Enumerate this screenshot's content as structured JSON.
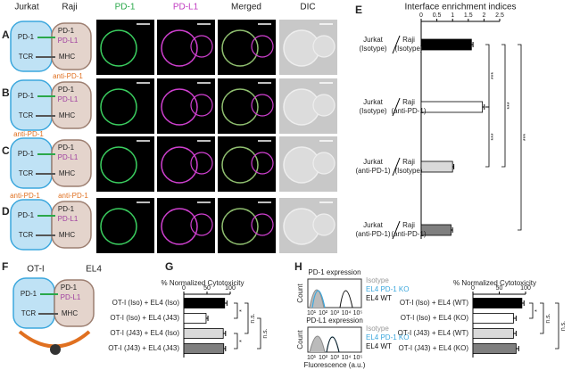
{
  "panels": [
    "A",
    "B",
    "C",
    "D",
    "E",
    "F",
    "G",
    "H"
  ],
  "columns": [
    "PD-1",
    "PD-L1",
    "Merged",
    "DIC"
  ],
  "cells": [
    "Jurkat",
    "Raji"
  ],
  "cartoon": {
    "left": [
      "PD-1",
      "TCR"
    ],
    "right": [
      "PD-1",
      "PD-L1",
      "MHC"
    ],
    "antibody": "anti-PD-1"
  },
  "f_cells": [
    "OT-I",
    "EL4"
  ],
  "histograms": {
    "titles": [
      "PD-1 expression",
      "PD-L1 expression"
    ],
    "y_label": "Count",
    "x_label": "Fluorescence (a.u.)",
    "xticks": [
      "10¹",
      "10²",
      "10³",
      "10⁴",
      "10⁵"
    ],
    "legend": [
      "Isotype",
      "EL4 PD-1 KO",
      "EL4 WT"
    ]
  },
  "chart_data": [
    {
      "type": "bar",
      "orientation": "horizontal",
      "title": "Interface enrichment indices",
      "categories": [
        {
          "left": [
            "Jurkat",
            "(Isotype)"
          ],
          "right": [
            "Raji",
            "(Isotype)"
          ]
        },
        {
          "left": [
            "Jurkat",
            "(Isotype)"
          ],
          "right": [
            "Raji",
            "(anti-PD-1)"
          ]
        },
        {
          "left": [
            "Jurkat",
            "(anti-PD-1)"
          ],
          "right": [
            "Raji",
            "(Isotype)"
          ]
        },
        {
          "left": [
            "Jurkat",
            "(anti-PD-1)"
          ],
          "right": [
            "Raji",
            "(anti-PD-1)"
          ]
        }
      ],
      "values": [
        1.6,
        1.95,
        1.0,
        0.95
      ],
      "errors": [
        0.05,
        0.06,
        0.04,
        0.05
      ],
      "colors": [
        "#000000",
        "#ffffff",
        "#d9d9d9",
        "#7f7f7f"
      ],
      "xlim": [
        0,
        2.5
      ],
      "xticks": [
        0,
        0.5,
        1,
        1.5,
        2,
        2.5
      ],
      "significance": [
        "***",
        "***",
        "***",
        "***"
      ]
    },
    {
      "type": "bar",
      "orientation": "horizontal",
      "title": "% Normalized Cytotoxicity",
      "categories": [
        "OT-I (Iso) + EL4 (Iso)",
        "OT-I (Iso) + EL4 (J43)",
        "OT-I (J43) + EL4 (Iso)",
        "OT-I (J43) + EL4 (J43)"
      ],
      "values": [
        88,
        48,
        85,
        86
      ],
      "errors": [
        5,
        4,
        5,
        4
      ],
      "colors": [
        "#000000",
        "#ffffff",
        "#d9d9d9",
        "#7f7f7f"
      ],
      "xlim": [
        0,
        100
      ],
      "xticks": [
        0,
        50,
        100
      ],
      "significance": [
        "*",
        "*",
        "n.s.",
        "n.s."
      ]
    },
    {
      "type": "bar",
      "orientation": "horizontal",
      "title": "% Normalized Cytotoxicity",
      "categories": [
        "OT-I (Iso) + EL4 (WT)",
        "OT-I (Iso) + EL4 (KO)",
        "OT-I (J43) + EL4 (WT)",
        "OT-I (J43) + EL4 (KO)"
      ],
      "values": [
        93,
        77,
        77,
        82
      ],
      "errors": [
        4,
        5,
        5,
        5
      ],
      "colors": [
        "#000000",
        "#ffffff",
        "#d9d9d9",
        "#7f7f7f"
      ],
      "xlim": [
        0,
        100
      ],
      "xticks": [
        0,
        50,
        100
      ],
      "significance": [
        "*",
        "n.s.",
        "n.s."
      ]
    }
  ]
}
